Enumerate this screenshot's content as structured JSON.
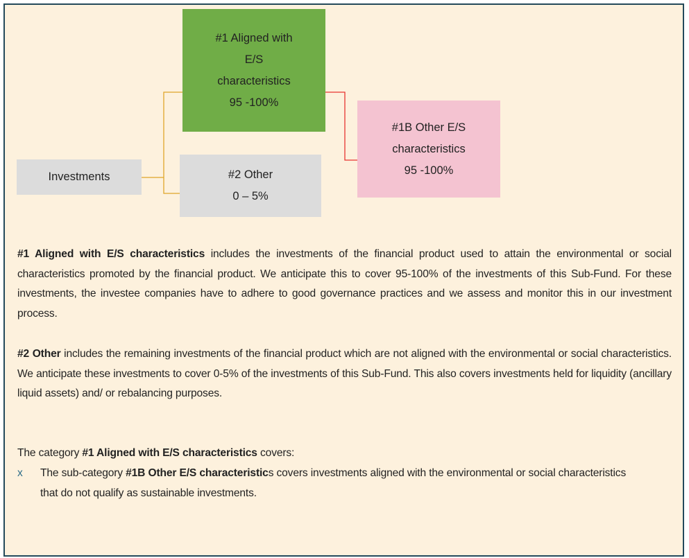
{
  "nodes": [
    {
      "id": "aligned",
      "lines": [
        "#1 Aligned with",
        "E/S",
        "characteristics",
        "95 -100%"
      ]
    },
    {
      "id": "other_es",
      "lines": [
        "#1B Other E/S",
        "characteristics",
        "95 -100%"
      ]
    },
    {
      "id": "investments",
      "lines": [
        "Investments"
      ]
    },
    {
      "id": "other",
      "lines": [
        "#2 Other",
        "0 – 5%"
      ]
    }
  ],
  "paragraphs": [
    {
      "segments": [
        {
          "bold": true,
          "text": "#1 Aligned with E/S characteristics"
        },
        {
          "bold": false,
          "text": " includes the investments of the financial product used to attain the environmental or social characteristics promoted by the financial product. We anticipate this to cover 95-100% of the investments of this Sub-Fund. For these investments, the investee companies have to adhere to good governance practices and we assess and monitor this in our investment process."
        }
      ]
    },
    {
      "segments": [
        {
          "bold": true,
          "text": "#2 Other"
        },
        {
          "bold": false,
          "text": " includes the remaining investments of the financial product which are not aligned with the environmental or social characteristics. We anticipate these investments to cover 0-5% of the investments of this Sub-Fund. This also covers investments held for liquidity (ancillary liquid assets) and/ or rebalancing purposes."
        }
      ]
    },
    {
      "segments": [
        {
          "bold": false,
          "text": "The category "
        },
        {
          "bold": true,
          "text": "#1 Aligned with E/S characteristics"
        },
        {
          "bold": false,
          "text": " covers:"
        }
      ]
    }
  ],
  "bullets": [
    {
      "marker": "x",
      "segments": [
        {
          "bold": false,
          "text": "The sub-category "
        },
        {
          "bold": true,
          "text": "#1B Other E/S characteristic"
        },
        {
          "bold": false,
          "text": "s covers investments aligned with the environmental or social characteristics that do not qualify as sustainable investments."
        }
      ]
    }
  ]
}
